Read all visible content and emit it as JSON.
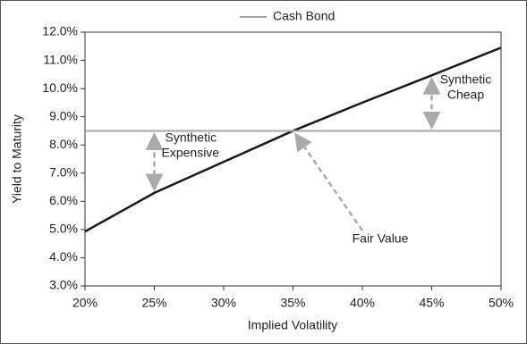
{
  "chart_data": {
    "type": "line",
    "legend": "top",
    "x_label": "Implied Volatility",
    "y_label": "Yield to Maturity",
    "x": [
      20,
      25,
      30,
      35,
      40,
      45,
      50
    ],
    "series": [
      {
        "color": "#1a1a1a",
        "values": [
          4.93,
          6.3,
          7.4,
          8.5,
          9.5,
          10.47,
          11.45
        ]
      },
      {
        "name": "Cash Bond",
        "color": "#a6a6a6",
        "values": [
          8.5,
          8.5,
          8.5,
          8.5,
          8.5,
          8.5,
          8.5
        ]
      }
    ],
    "xlim": [
      20,
      50
    ],
    "xticks": [
      {
        "value": 20,
        "label": "20%"
      },
      {
        "value": 25,
        "label": "25%"
      },
      {
        "value": 30,
        "label": "30%"
      },
      {
        "value": 35,
        "label": "35%"
      },
      {
        "value": 40,
        "label": "40%"
      },
      {
        "value": 45,
        "label": "45%"
      },
      {
        "value": 50,
        "label": "50%"
      }
    ],
    "ylim": [
      3,
      12
    ],
    "yticks": [
      {
        "value": 3,
        "label": "3.0%"
      },
      {
        "value": 4,
        "label": "4.0%"
      },
      {
        "value": 5,
        "label": "5.0%"
      },
      {
        "value": 6,
        "label": "6.0%"
      },
      {
        "value": 7,
        "label": "7.0%"
      },
      {
        "value": 8,
        "label": "8.0%"
      },
      {
        "value": 9,
        "label": "9.0%"
      },
      {
        "value": 10,
        "label": "10.0%"
      },
      {
        "value": 11,
        "label": "11.0%"
      },
      {
        "value": 12,
        "label": "12.0%"
      }
    ],
    "grid": false,
    "annotations": [
      {
        "text": [
          "Synthetic",
          "Expensive"
        ]
      },
      {
        "text": [
          "Synthetic",
          "Cheap"
        ]
      },
      {
        "text": [
          "Fair Value"
        ]
      }
    ]
  }
}
